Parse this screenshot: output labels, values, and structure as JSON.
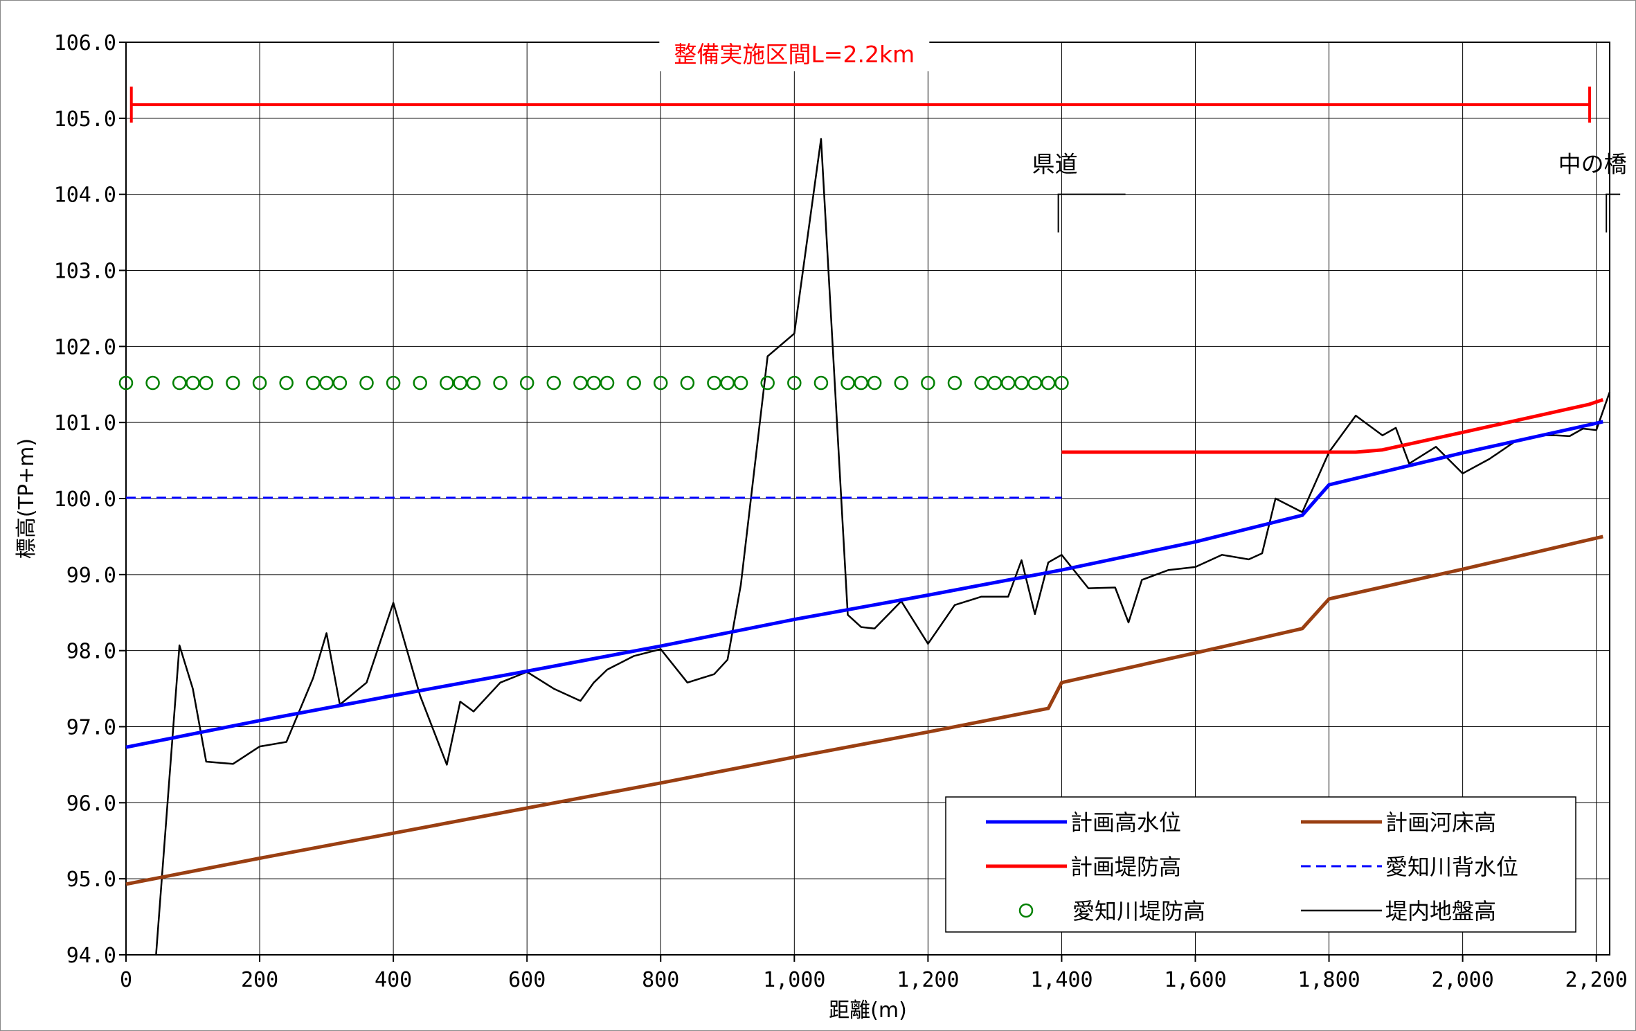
{
  "chart_data": {
    "type": "line",
    "title": "",
    "xlabel": "距離(m)",
    "ylabel": "標高(TP+m)",
    "xlim": [
      0,
      2220
    ],
    "ylim": [
      94.0,
      106.0
    ],
    "grid": true,
    "x_ticks": [
      0,
      200,
      400,
      600,
      800,
      1000,
      1200,
      1400,
      1600,
      1800,
      2000,
      2200
    ],
    "x_tick_labels": [
      "0",
      "200",
      "400",
      "600",
      "800",
      "1,000",
      "1,200",
      "1,400",
      "1,600",
      "1,800",
      "2,000",
      "2,200"
    ],
    "y_ticks": [
      94,
      95,
      96,
      97,
      98,
      99,
      100,
      101,
      102,
      103,
      104,
      105,
      106
    ],
    "y_tick_labels": [
      "94.0",
      "95.0",
      "96.0",
      "97.0",
      "98.0",
      "99.0",
      "100.0",
      "101.0",
      "102.0",
      "103.0",
      "104.0",
      "105.0",
      "106.0"
    ],
    "legend_position": "bottom-right",
    "series": [
      {
        "name": "計画高水位",
        "color": "#0000ff",
        "style": "solid",
        "points": [
          [
            0,
            96.73
          ],
          [
            200,
            97.08
          ],
          [
            400,
            97.41
          ],
          [
            600,
            97.73
          ],
          [
            800,
            98.06
          ],
          [
            1000,
            98.41
          ],
          [
            1200,
            98.73
          ],
          [
            1400,
            99.06
          ],
          [
            1600,
            99.43
          ],
          [
            1760,
            99.78
          ],
          [
            1800,
            100.18
          ],
          [
            2000,
            100.6
          ],
          [
            2210,
            101.01
          ]
        ]
      },
      {
        "name": "計画河床高",
        "color": "#9a3f12",
        "style": "solid",
        "points": [
          [
            0,
            94.93
          ],
          [
            200,
            95.27
          ],
          [
            400,
            95.6
          ],
          [
            600,
            95.93
          ],
          [
            800,
            96.26
          ],
          [
            1000,
            96.6
          ],
          [
            1200,
            96.93
          ],
          [
            1380,
            97.24
          ],
          [
            1400,
            97.58
          ],
          [
            1600,
            97.97
          ],
          [
            1760,
            98.29
          ],
          [
            1800,
            98.68
          ],
          [
            2000,
            99.07
          ],
          [
            2210,
            99.5
          ]
        ]
      },
      {
        "name": "計画堤防高",
        "color": "#ff0000",
        "style": "solid",
        "points": [
          [
            1400,
            100.61
          ],
          [
            1840,
            100.61
          ],
          [
            1880,
            100.64
          ],
          [
            2000,
            100.87
          ],
          [
            2190,
            101.24
          ],
          [
            2210,
            101.3
          ]
        ]
      },
      {
        "name": "愛知川背水位",
        "color": "#0000ff",
        "style": "dashed",
        "points": [
          [
            0,
            100.01
          ],
          [
            1400,
            100.01
          ]
        ]
      },
      {
        "name": "愛知川堤防高",
        "color": "#008000",
        "style": "markers",
        "points": [
          [
            0,
            101.52
          ],
          [
            40,
            101.52
          ],
          [
            80,
            101.52
          ],
          [
            100,
            101.52
          ],
          [
            120,
            101.52
          ],
          [
            160,
            101.52
          ],
          [
            200,
            101.52
          ],
          [
            240,
            101.52
          ],
          [
            280,
            101.52
          ],
          [
            300,
            101.52
          ],
          [
            320,
            101.52
          ],
          [
            360,
            101.52
          ],
          [
            400,
            101.52
          ],
          [
            440,
            101.52
          ],
          [
            480,
            101.52
          ],
          [
            500,
            101.52
          ],
          [
            520,
            101.52
          ],
          [
            560,
            101.52
          ],
          [
            600,
            101.52
          ],
          [
            640,
            101.52
          ],
          [
            680,
            101.52
          ],
          [
            700,
            101.52
          ],
          [
            720,
            101.52
          ],
          [
            760,
            101.52
          ],
          [
            800,
            101.52
          ],
          [
            840,
            101.52
          ],
          [
            880,
            101.52
          ],
          [
            900,
            101.52
          ],
          [
            920,
            101.52
          ],
          [
            960,
            101.52
          ],
          [
            1000,
            101.52
          ],
          [
            1040,
            101.52
          ],
          [
            1080,
            101.52
          ],
          [
            1100,
            101.52
          ],
          [
            1120,
            101.52
          ],
          [
            1160,
            101.52
          ],
          [
            1200,
            101.52
          ],
          [
            1240,
            101.52
          ],
          [
            1280,
            101.52
          ],
          [
            1300,
            101.52
          ],
          [
            1320,
            101.52
          ],
          [
            1340,
            101.52
          ],
          [
            1360,
            101.52
          ],
          [
            1380,
            101.52
          ],
          [
            1400,
            101.52
          ]
        ]
      },
      {
        "name": "堤内地盤高",
        "color": "#000000",
        "style": "thin",
        "points": [
          [
            45,
            94.0
          ],
          [
            80,
            98.07
          ],
          [
            100,
            97.5
          ],
          [
            120,
            96.54
          ],
          [
            160,
            96.51
          ],
          [
            200,
            96.74
          ],
          [
            240,
            96.8
          ],
          [
            280,
            97.64
          ],
          [
            300,
            98.23
          ],
          [
            320,
            97.29
          ],
          [
            360,
            97.58
          ],
          [
            400,
            98.63
          ],
          [
            440,
            97.41
          ],
          [
            480,
            96.5
          ],
          [
            500,
            97.33
          ],
          [
            520,
            97.2
          ],
          [
            560,
            97.58
          ],
          [
            600,
            97.72
          ],
          [
            640,
            97.5
          ],
          [
            680,
            97.34
          ],
          [
            700,
            97.58
          ],
          [
            720,
            97.75
          ],
          [
            760,
            97.93
          ],
          [
            800,
            98.02
          ],
          [
            840,
            97.58
          ],
          [
            880,
            97.69
          ],
          [
            900,
            97.88
          ],
          [
            920,
            98.87
          ],
          [
            960,
            101.87
          ],
          [
            1000,
            102.17
          ],
          [
            1040,
            104.73
          ],
          [
            1080,
            98.47
          ],
          [
            1100,
            98.31
          ],
          [
            1120,
            98.29
          ],
          [
            1160,
            98.65
          ],
          [
            1200,
            98.09
          ],
          [
            1240,
            98.6
          ],
          [
            1280,
            98.71
          ],
          [
            1300,
            98.71
          ],
          [
            1320,
            98.71
          ],
          [
            1340,
            99.19
          ],
          [
            1360,
            98.48
          ],
          [
            1380,
            99.16
          ],
          [
            1400,
            99.26
          ],
          [
            1440,
            98.82
          ],
          [
            1480,
            98.83
          ],
          [
            1500,
            98.37
          ],
          [
            1520,
            98.93
          ],
          [
            1560,
            99.06
          ],
          [
            1600,
            99.1
          ],
          [
            1640,
            99.26
          ],
          [
            1680,
            99.2
          ],
          [
            1700,
            99.28
          ],
          [
            1720,
            100.0
          ],
          [
            1760,
            99.82
          ],
          [
            1800,
            100.61
          ],
          [
            1840,
            101.09
          ],
          [
            1880,
            100.83
          ],
          [
            1900,
            100.93
          ],
          [
            1920,
            100.46
          ],
          [
            1960,
            100.68
          ],
          [
            2000,
            100.33
          ],
          [
            2040,
            100.52
          ],
          [
            2080,
            100.76
          ],
          [
            2120,
            100.83
          ],
          [
            2140,
            100.83
          ],
          [
            2160,
            100.82
          ],
          [
            2180,
            100.92
          ],
          [
            2200,
            100.9
          ],
          [
            2220,
            101.4
          ]
        ]
      }
    ],
    "annotations": {
      "section_label": "整備実施区間L=2.2km",
      "section_range": [
        8,
        2190
      ],
      "section_y": 105.18,
      "bridge_left_label": "県道",
      "bridge_left_x": 1395,
      "bridge_right_label": "中の橋",
      "bridge_right_x": 2215
    }
  }
}
